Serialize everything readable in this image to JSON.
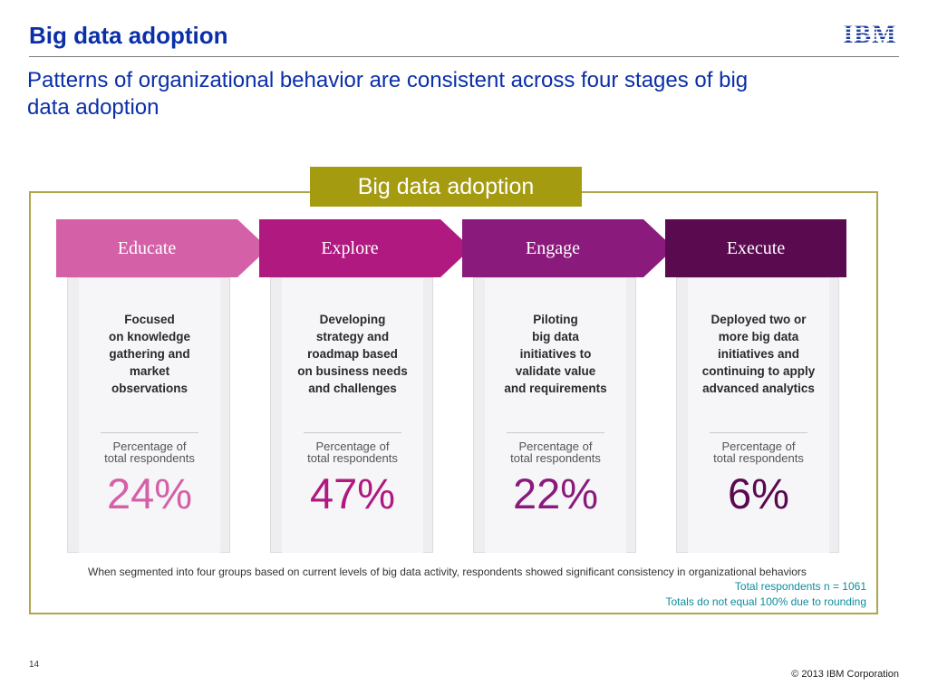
{
  "header": {
    "title": "Big data adoption",
    "subtitle": "Patterns of organizational behavior are consistent across four stages of big data adoption",
    "logo_text": "IBM"
  },
  "frame": {
    "label": "Big data adoption"
  },
  "stages": [
    {
      "name": "Educate",
      "color": "#d461a8",
      "description": "Focused\non knowledge\ngathering and\nmarket\nobservations",
      "pct_label": "Percentage of\ntotal respondents",
      "pct": "24%",
      "pct_color": "#d461a8"
    },
    {
      "name": "Explore",
      "color": "#b0197f",
      "description": "Developing\nstrategy and\nroadmap based\non business needs\nand challenges",
      "pct_label": "Percentage of\ntotal respondents",
      "pct": "47%",
      "pct_color": "#b0197f"
    },
    {
      "name": "Engage",
      "color": "#8a1a7c",
      "description": "Piloting\nbig data\ninitiatives to\nvalidate value\nand requirements",
      "pct_label": "Percentage of\ntotal respondents",
      "pct": "22%",
      "pct_color": "#8a1a7c"
    },
    {
      "name": "Execute",
      "color": "#5a0a4f",
      "description": "Deployed two or\nmore big data\ninitiatives and\ncontinuing to apply\nadvanced analytics",
      "pct_label": "Percentage of\ntotal respondents",
      "pct": "6%",
      "pct_color": "#5a0a4f"
    }
  ],
  "notes": {
    "main": "When segmented into four groups based on current levels of big data activity, respondents showed significant consistency in organizational behaviors",
    "respondents": "Total respondents n = 1061",
    "rounding": "Totals do not equal 100% due to rounding"
  },
  "footer": {
    "page_number": "14",
    "copyright": "© 2013 IBM Corporation"
  }
}
